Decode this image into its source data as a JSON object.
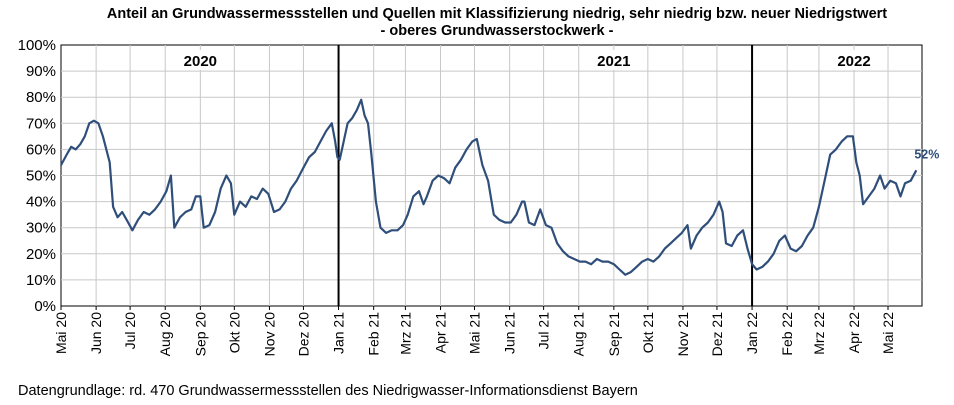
{
  "title_line1": "Anteil an Grundwassermessstellen und Quellen mit Klassifizierung niedrig, sehr niedrig bzw. neuer Niedrigstwert",
  "title_line2": "- oberes Grundwasserstockwerk -",
  "footer": "Datengrundlage:  rd. 470 Grundwassermessstellen  des Niedrigwasser-Informationsdienst  Bayern",
  "chart_data": {
    "type": "line",
    "ylim": [
      0,
      100
    ],
    "y_ticks": [
      "0%",
      "10%",
      "20%",
      "30%",
      "40%",
      "50%",
      "60%",
      "70%",
      "80%",
      "90%",
      "100%"
    ],
    "grid": true,
    "x_range": [
      "2020-05-01",
      "2022-05-31"
    ],
    "x_tick_labels": [
      "Mai 20",
      "Jun 20",
      "Jul 20",
      "Aug 20",
      "Sep 20",
      "Okt 20",
      "Nov 20",
      "Dez 20",
      "Jan 21",
      "Feb 21",
      "Mrz 21",
      "Apr 21",
      "Mai 21",
      "Jun 21",
      "Jul 21",
      "Aug 21",
      "Sep 21",
      "Okt 21",
      "Nov 21",
      "Dez 21",
      "Jan 22",
      "Feb 22",
      "Mrz 22",
      "Apr 22",
      "Mai 22"
    ],
    "x_tick_dates": [
      "2020-05-01",
      "2020-06-01",
      "2020-07-01",
      "2020-08-01",
      "2020-09-01",
      "2020-10-01",
      "2020-11-01",
      "2020-12-01",
      "2021-01-01",
      "2021-02-01",
      "2021-03-01",
      "2021-04-01",
      "2021-05-01",
      "2021-06-01",
      "2021-07-01",
      "2021-08-01",
      "2021-09-01",
      "2021-10-01",
      "2021-11-01",
      "2021-12-01",
      "2022-01-01",
      "2022-02-01",
      "2022-03-01",
      "2022-04-01",
      "2022-05-01"
    ],
    "year_labels": [
      {
        "text": "2020",
        "date": "2020-09-01"
      },
      {
        "text": "2021",
        "date": "2021-09-01"
      },
      {
        "text": "2022",
        "date": "2022-04-01"
      }
    ],
    "year_dividers": [
      "2021-01-01",
      "2022-01-01"
    ],
    "end_label": "52%",
    "series": [
      {
        "color": "#2f4f7a",
        "points": [
          [
            "2020-05-01",
            54
          ],
          [
            "2020-05-06",
            58
          ],
          [
            "2020-05-10",
            61
          ],
          [
            "2020-05-14",
            60
          ],
          [
            "2020-05-18",
            62
          ],
          [
            "2020-05-22",
            65
          ],
          [
            "2020-05-26",
            70
          ],
          [
            "2020-05-30",
            71
          ],
          [
            "2020-06-03",
            70
          ],
          [
            "2020-06-07",
            65
          ],
          [
            "2020-06-10",
            60
          ],
          [
            "2020-06-13",
            55
          ],
          [
            "2020-06-16",
            38
          ],
          [
            "2020-06-20",
            34
          ],
          [
            "2020-06-24",
            36
          ],
          [
            "2020-06-28",
            33
          ],
          [
            "2020-07-03",
            29
          ],
          [
            "2020-07-08",
            33
          ],
          [
            "2020-07-13",
            36
          ],
          [
            "2020-07-18",
            35
          ],
          [
            "2020-07-23",
            37
          ],
          [
            "2020-07-28",
            40
          ],
          [
            "2020-08-02",
            44
          ],
          [
            "2020-08-06",
            50
          ],
          [
            "2020-08-09",
            30
          ],
          [
            "2020-08-14",
            34
          ],
          [
            "2020-08-19",
            36
          ],
          [
            "2020-08-24",
            37
          ],
          [
            "2020-08-28",
            42
          ],
          [
            "2020-09-01",
            42
          ],
          [
            "2020-09-04",
            30
          ],
          [
            "2020-09-09",
            31
          ],
          [
            "2020-09-14",
            36
          ],
          [
            "2020-09-19",
            45
          ],
          [
            "2020-09-24",
            50
          ],
          [
            "2020-09-28",
            47
          ],
          [
            "2020-10-01",
            35
          ],
          [
            "2020-10-06",
            40
          ],
          [
            "2020-10-11",
            38
          ],
          [
            "2020-10-16",
            42
          ],
          [
            "2020-10-21",
            41
          ],
          [
            "2020-10-26",
            45
          ],
          [
            "2020-10-31",
            43
          ],
          [
            "2020-11-05",
            36
          ],
          [
            "2020-11-10",
            37
          ],
          [
            "2020-11-15",
            40
          ],
          [
            "2020-11-20",
            45
          ],
          [
            "2020-11-25",
            48
          ],
          [
            "2020-12-01",
            53
          ],
          [
            "2020-12-06",
            57
          ],
          [
            "2020-12-11",
            59
          ],
          [
            "2020-12-16",
            63
          ],
          [
            "2020-12-21",
            67
          ],
          [
            "2020-12-26",
            70
          ],
          [
            "2020-12-29",
            63
          ],
          [
            "2020-12-31",
            57
          ],
          [
            "2021-01-02",
            56
          ],
          [
            "2021-01-05",
            62
          ],
          [
            "2021-01-09",
            70
          ],
          [
            "2021-01-13",
            72
          ],
          [
            "2021-01-17",
            75
          ],
          [
            "2021-01-21",
            79
          ],
          [
            "2021-01-24",
            73
          ],
          [
            "2021-01-27",
            70
          ],
          [
            "2021-01-30",
            58
          ],
          [
            "2021-02-03",
            40
          ],
          [
            "2021-02-07",
            30
          ],
          [
            "2021-02-12",
            28
          ],
          [
            "2021-02-17",
            29
          ],
          [
            "2021-02-22",
            29
          ],
          [
            "2021-02-27",
            31
          ],
          [
            "2021-03-03",
            35
          ],
          [
            "2021-03-08",
            42
          ],
          [
            "2021-03-13",
            44
          ],
          [
            "2021-03-17",
            39
          ],
          [
            "2021-03-20",
            42
          ],
          [
            "2021-03-25",
            48
          ],
          [
            "2021-03-30",
            50
          ],
          [
            "2021-04-04",
            49
          ],
          [
            "2021-04-09",
            47
          ],
          [
            "2021-04-14",
            53
          ],
          [
            "2021-04-19",
            56
          ],
          [
            "2021-04-24",
            60
          ],
          [
            "2021-04-29",
            63
          ],
          [
            "2021-05-03",
            64
          ],
          [
            "2021-05-08",
            54
          ],
          [
            "2021-05-13",
            48
          ],
          [
            "2021-05-18",
            35
          ],
          [
            "2021-05-23",
            33
          ],
          [
            "2021-05-28",
            32
          ],
          [
            "2021-06-02",
            32
          ],
          [
            "2021-06-07",
            35
          ],
          [
            "2021-06-12",
            40
          ],
          [
            "2021-06-14",
            40
          ],
          [
            "2021-06-18",
            32
          ],
          [
            "2021-06-23",
            31
          ],
          [
            "2021-06-28",
            37
          ],
          [
            "2021-07-03",
            31
          ],
          [
            "2021-07-08",
            30
          ],
          [
            "2021-07-13",
            24
          ],
          [
            "2021-07-18",
            21
          ],
          [
            "2021-07-23",
            19
          ],
          [
            "2021-07-28",
            18
          ],
          [
            "2021-08-02",
            17
          ],
          [
            "2021-08-07",
            17
          ],
          [
            "2021-08-12",
            16
          ],
          [
            "2021-08-17",
            18
          ],
          [
            "2021-08-22",
            17
          ],
          [
            "2021-08-27",
            17
          ],
          [
            "2021-09-01",
            16
          ],
          [
            "2021-09-06",
            14
          ],
          [
            "2021-09-11",
            12
          ],
          [
            "2021-09-16",
            13
          ],
          [
            "2021-09-21",
            15
          ],
          [
            "2021-09-26",
            17
          ],
          [
            "2021-10-01",
            18
          ],
          [
            "2021-10-06",
            17
          ],
          [
            "2021-10-11",
            19
          ],
          [
            "2021-10-16",
            22
          ],
          [
            "2021-10-21",
            24
          ],
          [
            "2021-10-26",
            26
          ],
          [
            "2021-10-31",
            28
          ],
          [
            "2021-11-05",
            31
          ],
          [
            "2021-11-08",
            22
          ],
          [
            "2021-11-13",
            27
          ],
          [
            "2021-11-18",
            30
          ],
          [
            "2021-11-23",
            32
          ],
          [
            "2021-11-28",
            35
          ],
          [
            "2021-12-03",
            40
          ],
          [
            "2021-12-06",
            36
          ],
          [
            "2021-12-09",
            24
          ],
          [
            "2021-12-14",
            23
          ],
          [
            "2021-12-19",
            27
          ],
          [
            "2021-12-24",
            29
          ],
          [
            "2021-12-28",
            22
          ],
          [
            "2022-01-01",
            16
          ],
          [
            "2022-01-05",
            14
          ],
          [
            "2022-01-10",
            15
          ],
          [
            "2022-01-15",
            17
          ],
          [
            "2022-01-20",
            20
          ],
          [
            "2022-01-25",
            25
          ],
          [
            "2022-01-30",
            27
          ],
          [
            "2022-02-04",
            22
          ],
          [
            "2022-02-09",
            21
          ],
          [
            "2022-02-14",
            23
          ],
          [
            "2022-02-19",
            27
          ],
          [
            "2022-02-24",
            30
          ],
          [
            "2022-03-01",
            38
          ],
          [
            "2022-03-06",
            48
          ],
          [
            "2022-03-11",
            58
          ],
          [
            "2022-03-16",
            60
          ],
          [
            "2022-03-21",
            63
          ],
          [
            "2022-03-26",
            65
          ],
          [
            "2022-03-31",
            65
          ],
          [
            "2022-04-03",
            55
          ],
          [
            "2022-04-06",
            50
          ],
          [
            "2022-04-09",
            39
          ],
          [
            "2022-04-14",
            42
          ],
          [
            "2022-04-19",
            45
          ],
          [
            "2022-04-24",
            50
          ],
          [
            "2022-04-28",
            45
          ],
          [
            "2022-05-03",
            48
          ],
          [
            "2022-05-08",
            47
          ],
          [
            "2022-05-12",
            42
          ],
          [
            "2022-05-16",
            47
          ],
          [
            "2022-05-21",
            48
          ],
          [
            "2022-05-26",
            52
          ]
        ]
      }
    ]
  }
}
